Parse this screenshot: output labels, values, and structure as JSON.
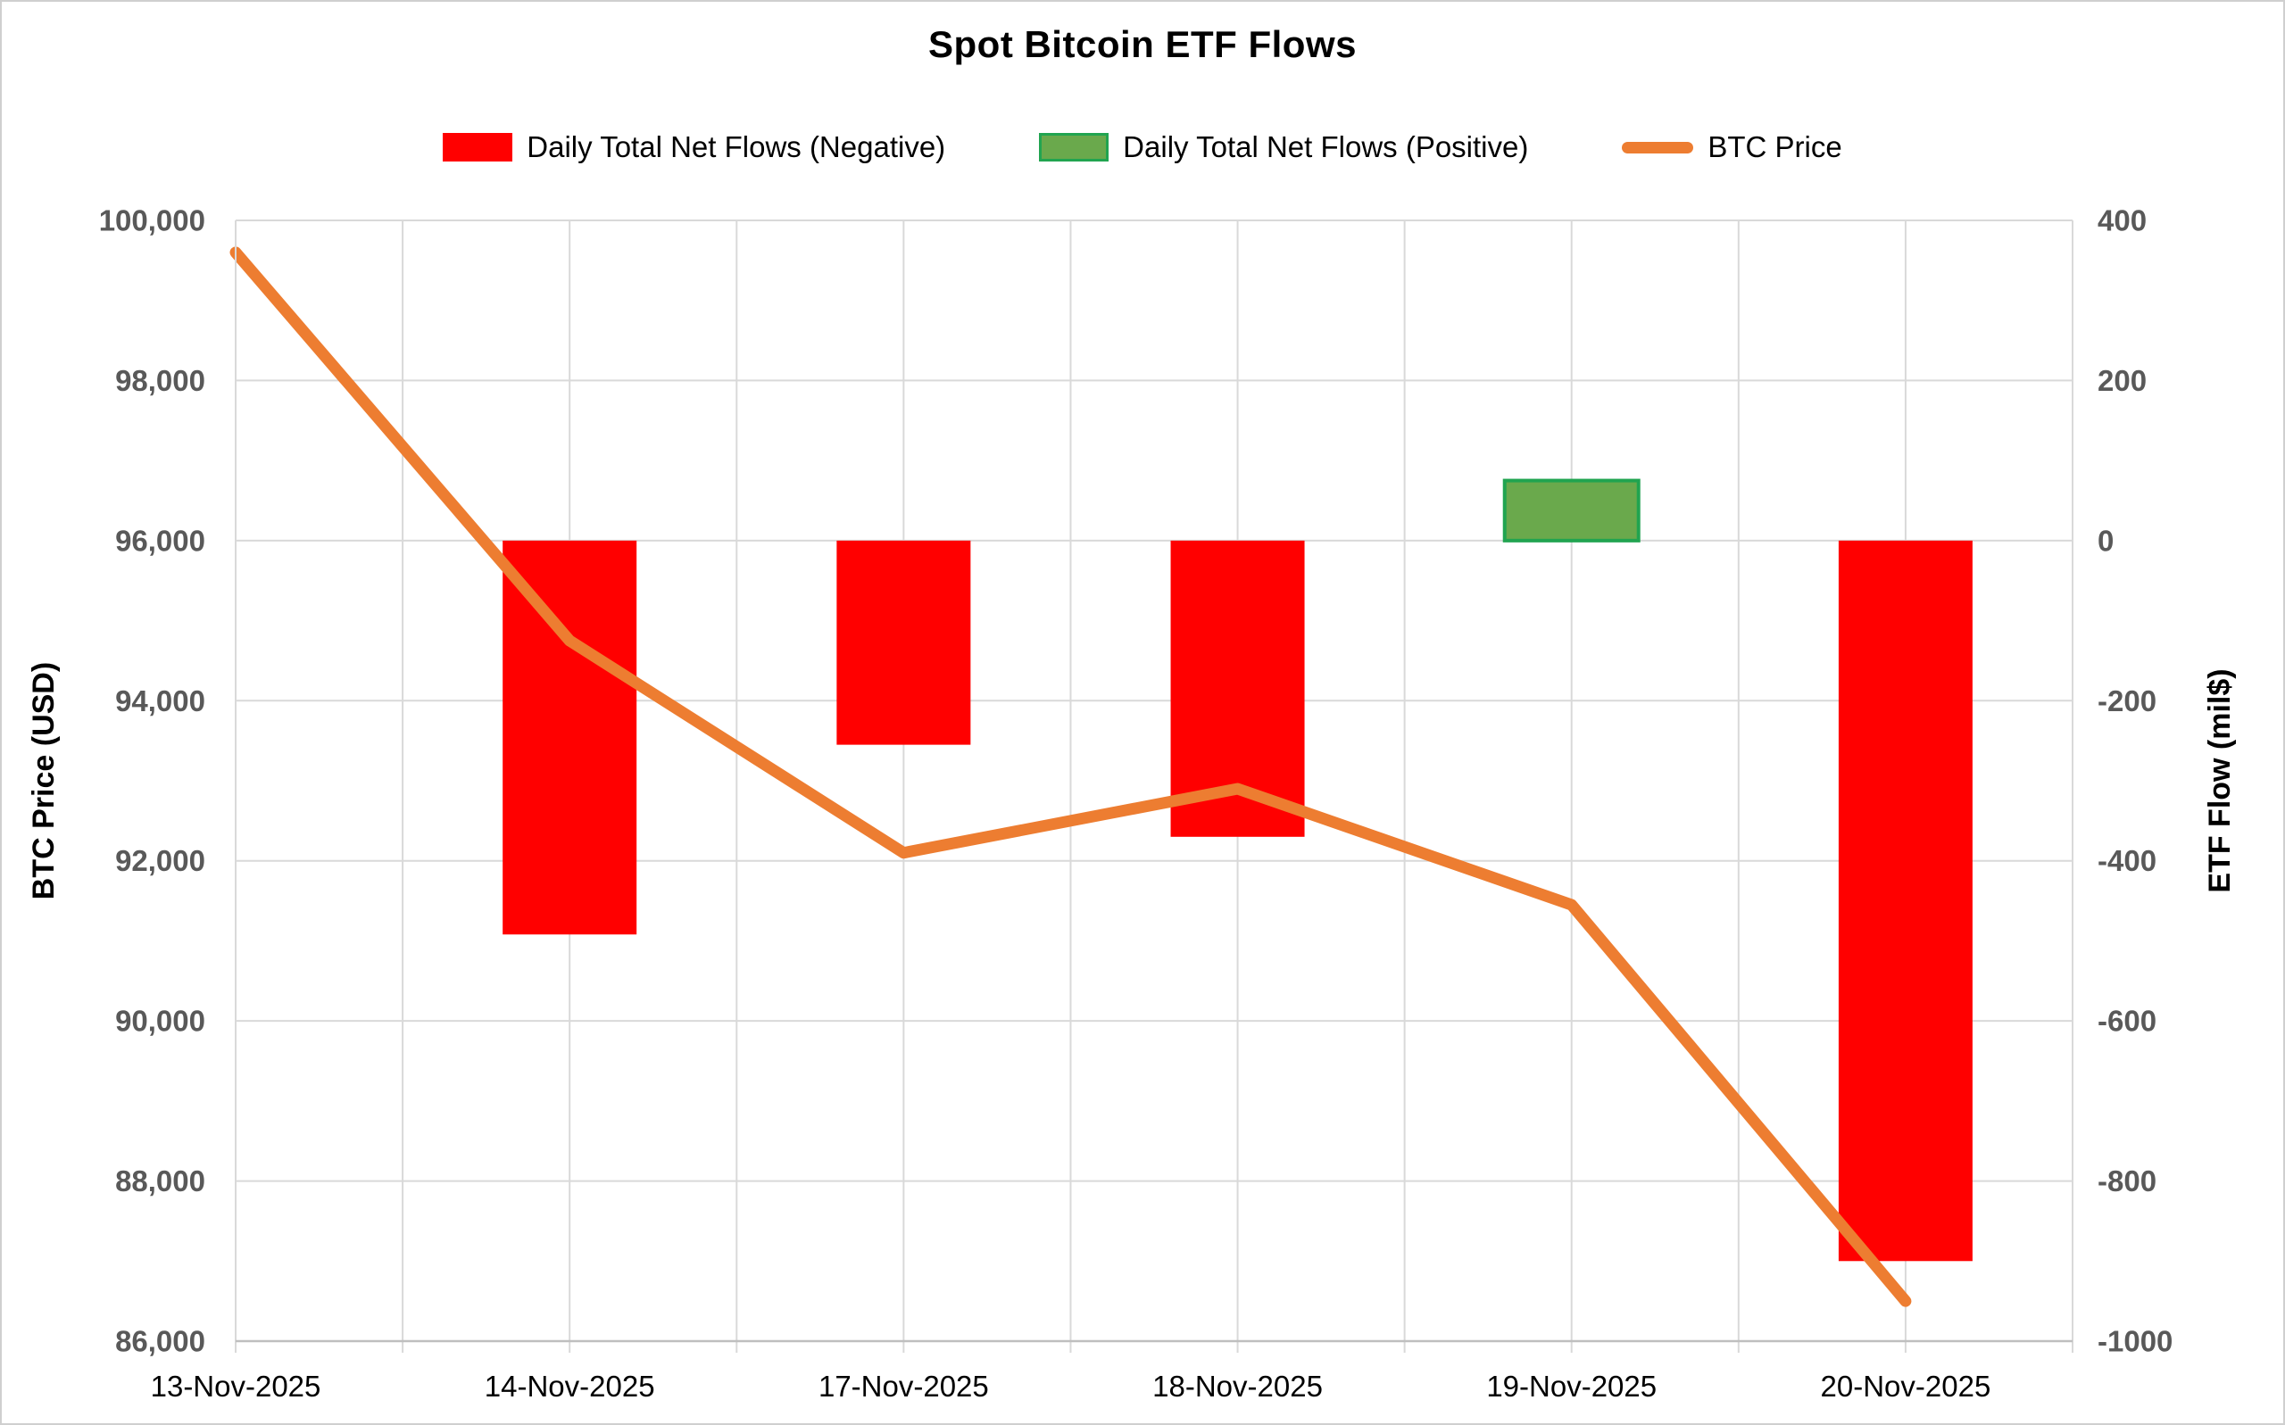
{
  "title": "Spot Bitcoin ETF Flows",
  "legend": [
    {
      "label": "Daily Total Net Flows (Negative)",
      "swatch": "bar",
      "color": "#FF0000"
    },
    {
      "label": "Daily Total Net Flows (Positive)",
      "swatch": "bar",
      "color": "#6AA94C",
      "border": "#21A450"
    },
    {
      "label": "BTC Price",
      "swatch": "line",
      "color": "#ED7D31"
    }
  ],
  "chart_data": {
    "type": "combo",
    "categories": [
      "13-Nov-2025",
      "14-Nov-2025",
      "17-Nov-2025",
      "18-Nov-2025",
      "19-Nov-2025",
      "20-Nov-2025"
    ],
    "series": [
      {
        "name": "Daily Total Net Flows",
        "type": "bar",
        "axis": "right",
        "values": [
          null,
          -492,
          -255,
          -370,
          75,
          -900
        ],
        "negative_color": "#FF0000",
        "positive_color": "#6AA94C",
        "positive_border": "#21A450"
      },
      {
        "name": "BTC Price",
        "type": "line",
        "axis": "left",
        "values": [
          99600,
          94750,
          92100,
          92900,
          91450,
          86500
        ],
        "color": "#ED7D31",
        "width": 13
      }
    ],
    "left_axis": {
      "label": "BTC Price (USD)",
      "min": 86000,
      "max": 100000,
      "step": 2000,
      "tick_format": "thousands-comma"
    },
    "right_axis": {
      "label": "ETF Flow (mil$)",
      "min": -1000,
      "max": 400,
      "step": 200,
      "tick_format": "plain"
    },
    "grid": true,
    "legend_position": "top",
    "colors": {
      "gridline": "#D9D9D9",
      "axis_line": "#BFBFBF",
      "tick_label": "#595959",
      "text": "#000000",
      "background": "#FFFFFF"
    }
  }
}
